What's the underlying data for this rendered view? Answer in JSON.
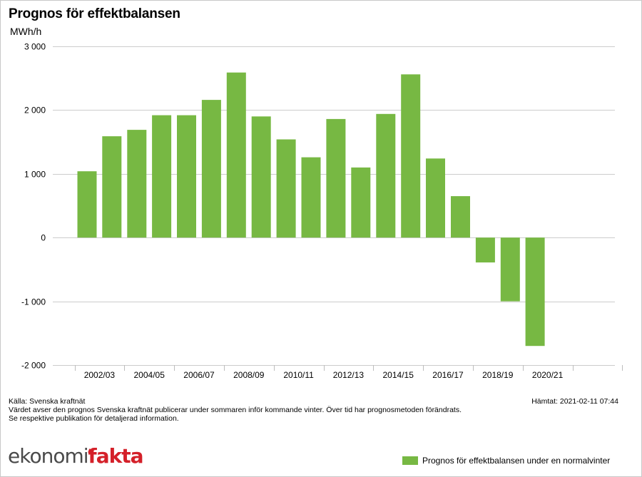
{
  "colors": {
    "bar": "#77b843",
    "grid": "#cccccc",
    "axis": "#bdbdbd"
  },
  "header": {
    "title": "Prognos för effektbalansen",
    "unit": "MWh/h"
  },
  "footer": {
    "source": "Källa: Svenska kraftnät",
    "note_line1": "Värdet avser den prognos Svenska kraftnät publicerar under sommaren inför kommande vinter. Över tid har prognosmetoden förändrats.",
    "note_line2": "Se respektive publikation för detaljerad information.",
    "fetched": "Hämtat: 2021-02-11 07:44"
  },
  "brand": {
    "part1": "ekonomi",
    "part2": "fakta"
  },
  "chart_data": {
    "type": "bar",
    "title": "Prognos för effektbalansen",
    "ylabel": "MWh/h",
    "xlabel": "",
    "ylim": [
      -2000,
      3000
    ],
    "yticks": [
      3000,
      2000,
      1000,
      0,
      -1000,
      -2000
    ],
    "ytick_labels": [
      "3 000",
      "2 000",
      "1 000",
      "0",
      "-1 000",
      "-2 000"
    ],
    "grid": true,
    "legend_position": "bottom-right",
    "categories": [
      "2002/03",
      "2003/04",
      "2004/05",
      "2005/06",
      "2006/07",
      "2007/08",
      "2008/09",
      "2009/10",
      "2010/11",
      "2011/12",
      "2012/13",
      "2013/14",
      "2014/15",
      "2015/16",
      "2016/17",
      "2017/18",
      "2018/19",
      "2019/20",
      "2020/21"
    ],
    "xtick_labels": [
      "2002/03",
      "2004/05",
      "2006/07",
      "2008/09",
      "2010/11",
      "2012/13",
      "2014/15",
      "2016/17",
      "2018/19",
      "2020/21"
    ],
    "series": [
      {
        "name": "Prognos för effektbalansen under en normalvinter",
        "values": [
          1040,
          1590,
          1690,
          1920,
          1920,
          2160,
          2590,
          1900,
          1540,
          1260,
          1860,
          1100,
          1940,
          2560,
          1240,
          650,
          -390,
          -1000,
          -1700
        ]
      }
    ]
  }
}
